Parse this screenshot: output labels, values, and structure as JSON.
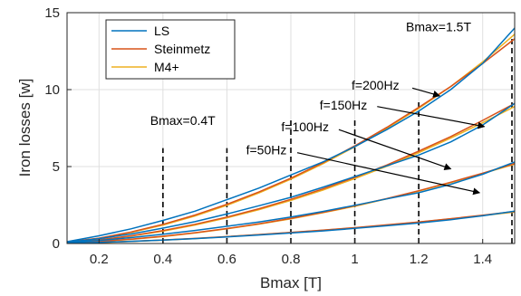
{
  "chart_data": {
    "type": "line",
    "xlabel": "Bmax [T]",
    "ylabel": "Iron losses [w]",
    "xlim": [
      0.1,
      1.5
    ],
    "ylim": [
      0,
      15
    ],
    "xticks": [
      0.2,
      0.4,
      0.6,
      0.8,
      1,
      1.2,
      1.4
    ],
    "xtick_labels": [
      "0.2",
      "0.4",
      "0.6",
      "0.8",
      "1",
      "1.2",
      "1.4"
    ],
    "yticks": [
      0,
      5,
      10,
      15
    ],
    "ytick_labels": [
      "0",
      "5",
      "10",
      "15"
    ],
    "grid": true,
    "legend_position": "top-left",
    "series_colors": {
      "LS": "#0072BD",
      "Steinmetz": "#D95319",
      "M4+": "#EDB120"
    },
    "series": [
      {
        "name": "LS",
        "frequency": "f=200Hz",
        "x": [
          0.1,
          0.2,
          0.3,
          0.4,
          0.5,
          0.6,
          0.7,
          0.8,
          0.9,
          1.0,
          1.1,
          1.2,
          1.3,
          1.4,
          1.5
        ],
        "values": [
          0.12,
          0.5,
          0.95,
          1.5,
          2.1,
          2.85,
          3.6,
          4.45,
          5.3,
          6.3,
          7.4,
          8.6,
          10.0,
          11.7,
          14.0
        ]
      },
      {
        "name": "Steinmetz",
        "frequency": "f=200Hz",
        "x": [
          0.1,
          0.2,
          0.3,
          0.4,
          0.5,
          0.6,
          0.7,
          0.8,
          0.9,
          1.0,
          1.1,
          1.2,
          1.3,
          1.4,
          1.5
        ],
        "values": [
          0.1,
          0.35,
          0.75,
          1.25,
          1.85,
          2.55,
          3.35,
          4.25,
          5.25,
          6.35,
          7.55,
          8.85,
          10.2,
          11.7,
          13.3
        ]
      },
      {
        "name": "M4+",
        "frequency": "f=200Hz",
        "x": [
          0.1,
          0.2,
          0.3,
          0.4,
          0.5,
          0.6,
          0.7,
          0.8,
          0.9,
          1.0,
          1.1,
          1.2,
          1.3,
          1.4,
          1.5
        ],
        "values": [
          0.1,
          0.33,
          0.72,
          1.2,
          1.78,
          2.48,
          3.28,
          4.18,
          5.18,
          6.28,
          7.48,
          8.78,
          10.2,
          11.8,
          13.6
        ]
      },
      {
        "name": "LS",
        "frequency": "f=150Hz",
        "x": [
          0.1,
          0.2,
          0.3,
          0.4,
          0.5,
          0.6,
          0.7,
          0.8,
          0.9,
          1.0,
          1.1,
          1.2,
          1.3,
          1.4,
          1.5
        ],
        "values": [
          0.08,
          0.32,
          0.62,
          1.0,
          1.42,
          1.92,
          2.45,
          3.0,
          3.65,
          4.35,
          5.05,
          5.75,
          6.6,
          7.7,
          9.1
        ]
      },
      {
        "name": "Steinmetz",
        "frequency": "f=150Hz",
        "x": [
          0.1,
          0.2,
          0.3,
          0.4,
          0.5,
          0.6,
          0.7,
          0.8,
          0.9,
          1.0,
          1.1,
          1.2,
          1.3,
          1.4,
          1.5
        ],
        "values": [
          0.07,
          0.24,
          0.5,
          0.84,
          1.25,
          1.72,
          2.26,
          2.87,
          3.55,
          4.3,
          5.1,
          6.0,
          6.95,
          8.0,
          9.1
        ]
      },
      {
        "name": "M4+",
        "frequency": "f=150Hz",
        "x": [
          0.1,
          0.2,
          0.3,
          0.4,
          0.5,
          0.6,
          0.7,
          0.8,
          0.9,
          1.0,
          1.1,
          1.2,
          1.3,
          1.4,
          1.5
        ],
        "values": [
          0.07,
          0.22,
          0.48,
          0.8,
          1.2,
          1.67,
          2.2,
          2.8,
          3.47,
          4.22,
          5.02,
          5.9,
          6.85,
          7.85,
          8.9
        ]
      },
      {
        "name": "LS",
        "frequency": "f=100Hz",
        "x": [
          0.1,
          0.2,
          0.3,
          0.4,
          0.5,
          0.6,
          0.7,
          0.8,
          0.9,
          1.0,
          1.1,
          1.2,
          1.3,
          1.4,
          1.5
        ],
        "values": [
          0.06,
          0.2,
          0.38,
          0.6,
          0.85,
          1.12,
          1.4,
          1.72,
          2.08,
          2.48,
          2.9,
          3.3,
          3.85,
          4.5,
          5.3
        ]
      },
      {
        "name": "Steinmetz",
        "frequency": "f=100Hz",
        "x": [
          0.1,
          0.2,
          0.3,
          0.4,
          0.5,
          0.6,
          0.7,
          0.8,
          0.9,
          1.0,
          1.1,
          1.2,
          1.3,
          1.4,
          1.5
        ],
        "values": [
          0.05,
          0.14,
          0.28,
          0.47,
          0.7,
          0.97,
          1.28,
          1.63,
          2.02,
          2.45,
          2.92,
          3.43,
          3.98,
          4.57,
          5.2
        ]
      },
      {
        "name": "M4+",
        "frequency": "f=100Hz",
        "x": [
          0.1,
          0.2,
          0.3,
          0.4,
          0.5,
          0.6,
          0.7,
          0.8,
          0.9,
          1.0,
          1.1,
          1.2,
          1.3,
          1.4,
          1.5
        ],
        "values": [
          0.05,
          0.13,
          0.27,
          0.45,
          0.68,
          0.95,
          1.26,
          1.6,
          2.0,
          2.42,
          2.9,
          3.4,
          3.95,
          4.55,
          5.15
        ]
      },
      {
        "name": "LS",
        "frequency": "f=50Hz",
        "x": [
          0.1,
          0.2,
          0.3,
          0.4,
          0.5,
          0.6,
          0.7,
          0.8,
          0.9,
          1.0,
          1.1,
          1.2,
          1.3,
          1.4,
          1.5
        ],
        "values": [
          0.02,
          0.07,
          0.14,
          0.22,
          0.32,
          0.43,
          0.55,
          0.68,
          0.82,
          0.98,
          1.15,
          1.33,
          1.55,
          1.8,
          2.1
        ]
      },
      {
        "name": "Steinmetz",
        "frequency": "f=50Hz",
        "x": [
          0.1,
          0.2,
          0.3,
          0.4,
          0.5,
          0.6,
          0.7,
          0.8,
          0.9,
          1.0,
          1.1,
          1.2,
          1.3,
          1.4,
          1.5
        ],
        "values": [
          0.02,
          0.07,
          0.14,
          0.23,
          0.33,
          0.45,
          0.58,
          0.72,
          0.87,
          1.03,
          1.21,
          1.4,
          1.61,
          1.84,
          2.08
        ]
      },
      {
        "name": "M4+",
        "frequency": "f=50Hz",
        "x": [
          0.1,
          0.2,
          0.3,
          0.4,
          0.5,
          0.6,
          0.7,
          0.8,
          0.9,
          1.0,
          1.1,
          1.2,
          1.3,
          1.4,
          1.5
        ],
        "values": [
          0.02,
          0.06,
          0.13,
          0.22,
          0.32,
          0.44,
          0.57,
          0.71,
          0.86,
          1.02,
          1.2,
          1.39,
          1.6,
          1.82,
          2.05
        ]
      }
    ],
    "vertical_markers": [
      {
        "x": 0.4,
        "ymin": 0,
        "ymax": 6.2
      },
      {
        "x": 0.6,
        "ymin": 0,
        "ymax": 6.2
      },
      {
        "x": 0.8,
        "ymin": 0,
        "ymax": 8.0
      },
      {
        "x": 1.0,
        "ymin": 0,
        "ymax": 8.0
      },
      {
        "x": 1.2,
        "ymin": 0,
        "ymax": 9.3
      },
      {
        "x": 1.4915,
        "ymin": 0,
        "ymax": 13.3
      }
    ],
    "annotations": [
      {
        "text": "Bmax=0.4T",
        "x": 0.36,
        "y": 7.7,
        "arrow": null
      },
      {
        "text": "Bmax=1.5T",
        "x": 1.16,
        "y": 13.8,
        "arrow": null
      },
      {
        "text": "f=200Hz",
        "x": 0.99,
        "y": 10.0,
        "arrow": {
          "from": [
            1.18,
            10.1
          ],
          "to": [
            1.265,
            9.6
          ]
        }
      },
      {
        "text": "f=150Hz",
        "x": 0.89,
        "y": 8.7,
        "arrow": {
          "from": [
            1.07,
            8.9
          ],
          "to": [
            1.405,
            7.6
          ]
        }
      },
      {
        "text": "f=100Hz",
        "x": 0.77,
        "y": 7.3,
        "arrow": {
          "from": [
            0.95,
            7.4
          ],
          "to": [
            1.3,
            4.85
          ]
        }
      },
      {
        "text": "f=50Hz",
        "x": 0.66,
        "y": 5.8,
        "arrow": {
          "from": [
            0.82,
            5.9
          ],
          "to": [
            1.39,
            3.3
          ]
        }
      }
    ],
    "legend": [
      "LS",
      "Steinmetz",
      "M4+"
    ]
  }
}
